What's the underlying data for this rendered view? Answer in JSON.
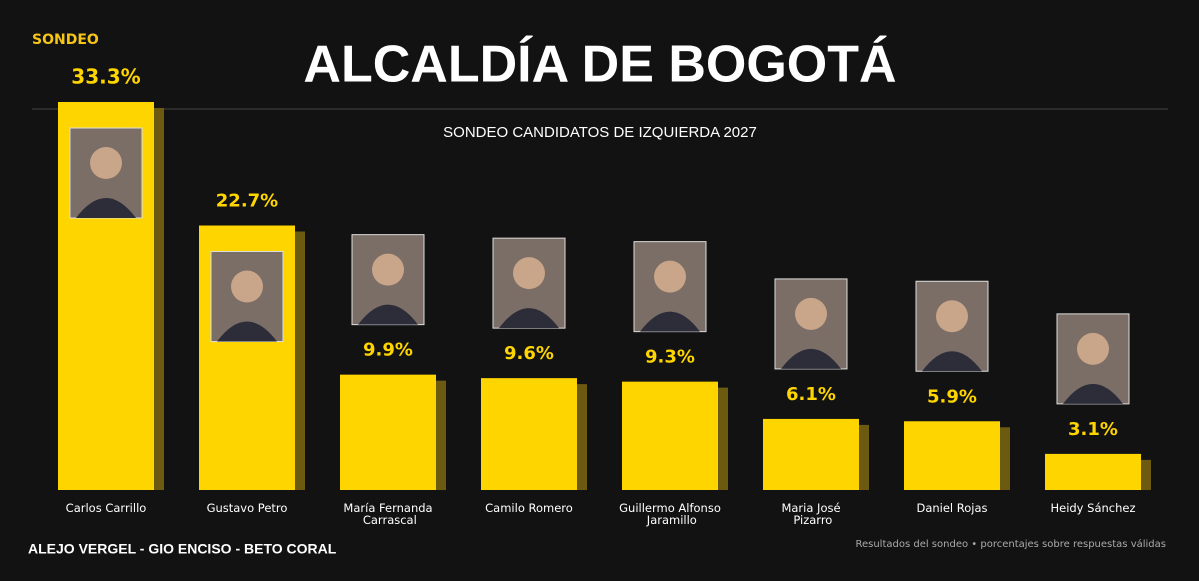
{
  "badge": "SONDEO",
  "footer_left": "ALEJO VERGEL - GIO ENCISO - BETO CORAL",
  "footer_right": "Resultados del sondeo • porcentajes sobre respuestas válidas",
  "chart_data": {
    "type": "bar",
    "title": "ALCALDÍA DE BOGOTÁ",
    "subtitle": "SONDEO CANDIDATOS DE IZQUIERDA 2027",
    "categories": [
      "Carlos Carrillo",
      "Gustavo Petro",
      "María Fernanda Carrascal",
      "Camilo Romero",
      "Guillermo Alfonso Jaramillo",
      "Maria José Pizarro",
      "Daniel Rojas",
      "Heidy Sánchez"
    ],
    "values": [
      33.3,
      22.7,
      9.9,
      9.6,
      9.3,
      6.1,
      5.9,
      3.1
    ],
    "value_labels": [
      "33.3%",
      "22.7%",
      "9.9%",
      "9.6%",
      "9.3%",
      "6.1%",
      "5.9%",
      "3.1%"
    ],
    "color": "#ffd500"
  }
}
